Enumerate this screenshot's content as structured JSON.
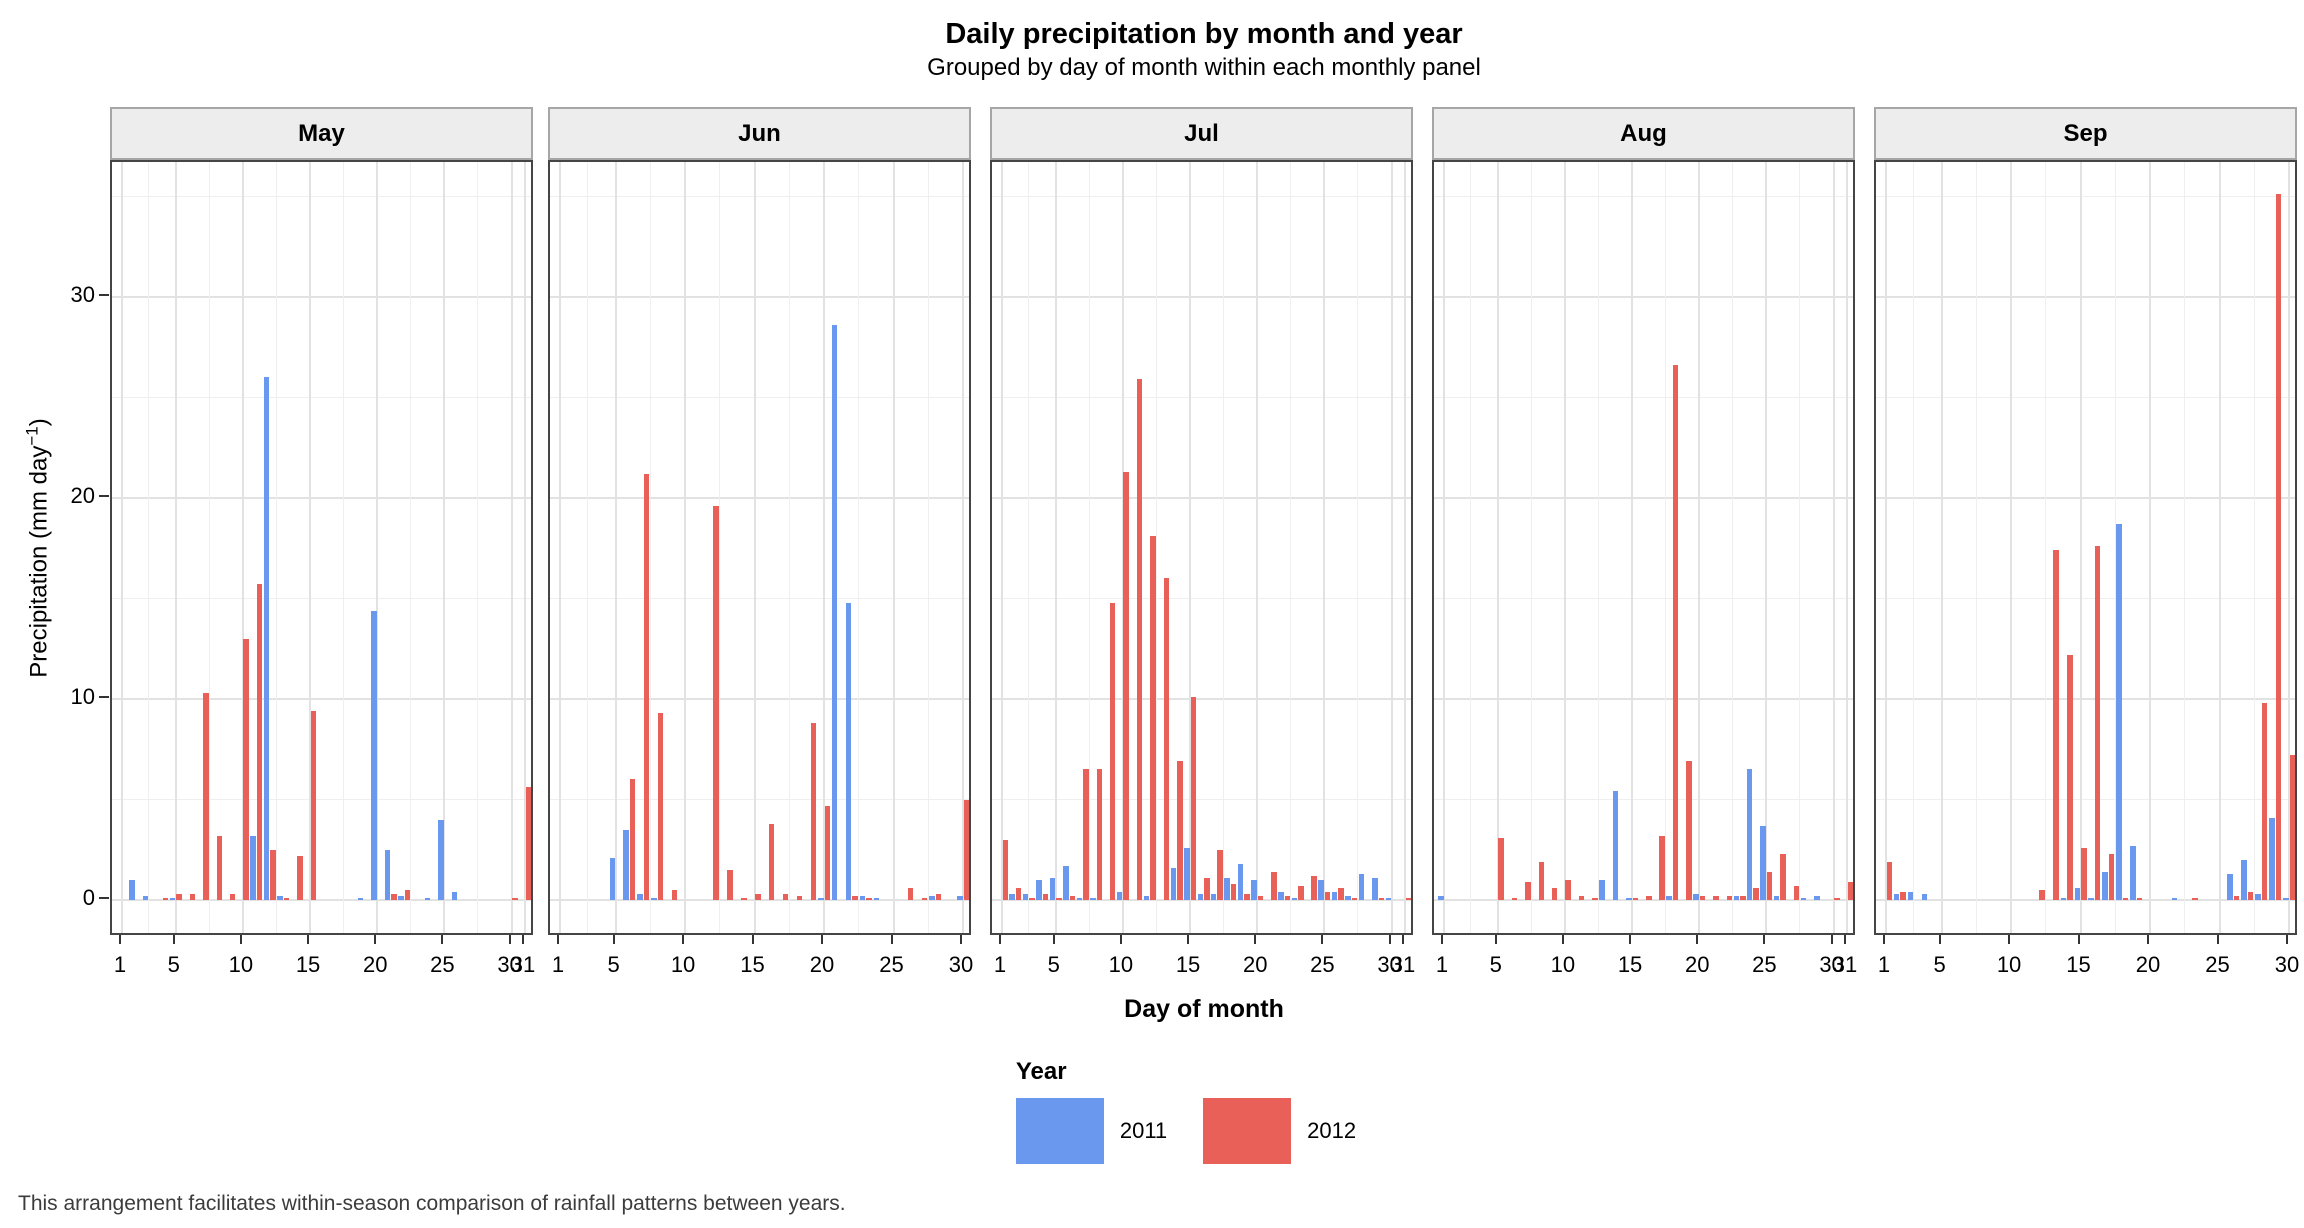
{
  "chart_data": {
    "type": "bar",
    "title": "Daily precipitation by month and year",
    "subtitle": "Grouped by day of month within each monthly panel",
    "xlabel": "Day of month",
    "ylabel_main": "Precipitation (mm day",
    "ylabel_sup": "−1",
    "ylabel_close": ")",
    "footer": "This arrangement facilitates within-season comparison of rainfall patterns between years.",
    "grid": "major and minor, light gray on white",
    "legend_position": "bottom center",
    "yticks": [
      0,
      10,
      20,
      30
    ],
    "ylim": [
      0,
      37
    ],
    "x_tick_days": [
      1,
      5,
      10,
      15,
      20,
      25,
      30
    ],
    "legend": {
      "title": "Year",
      "series": [
        {
          "name": "2011",
          "color": "#6998ee"
        },
        {
          "name": "2012",
          "color": "#e86057"
        }
      ]
    },
    "panels": [
      {
        "month": "May",
        "days": 31,
        "values": {
          "2011": {
            "2": 1.0,
            "3": 0.2,
            "5": 0.1,
            "11": 3.2,
            "12": 26.0,
            "13": 0.2,
            "19": 0.1,
            "20": 14.4,
            "21": 2.5,
            "22": 0.2,
            "24": 0.1,
            "25": 4.0,
            "26": 0.4
          },
          "2012": {
            "4": 0.1,
            "5": 0.3,
            "6": 0.3,
            "7": 10.3,
            "8": 3.2,
            "9": 0.3,
            "10": 13.0,
            "11": 15.7,
            "12": 2.5,
            "13": 0.1,
            "14": 2.2,
            "15": 9.4,
            "21": 0.3,
            "22": 0.5,
            "30": 0.1,
            "31": 5.6
          }
        }
      },
      {
        "month": "Jun",
        "days": 30,
        "values": {
          "2011": {
            "5": 2.1,
            "6": 3.5,
            "7": 0.3,
            "8": 0.1,
            "20": 0.1,
            "21": 28.6,
            "22": 14.8,
            "23": 0.2,
            "24": 0.1,
            "28": 0.2,
            "30": 0.2
          },
          "2012": {
            "6": 6.0,
            "7": 21.2,
            "8": 9.3,
            "9": 0.5,
            "12": 19.6,
            "13": 1.5,
            "14": 0.1,
            "15": 0.3,
            "16": 3.8,
            "17": 0.3,
            "18": 0.2,
            "19": 8.8,
            "20": 4.7,
            "22": 0.2,
            "23": 0.1,
            "26": 0.6,
            "27": 0.1,
            "28": 0.3,
            "30": 5.0
          }
        }
      },
      {
        "month": "Jul",
        "days": 31,
        "values": {
          "2011": {
            "2": 0.3,
            "3": 0.3,
            "4": 1.0,
            "5": 1.1,
            "6": 1.7,
            "7": 0.1,
            "8": 0.1,
            "10": 0.4,
            "12": 0.2,
            "14": 1.6,
            "15": 2.6,
            "16": 0.3,
            "17": 0.3,
            "18": 1.1,
            "19": 1.8,
            "20": 1.0,
            "22": 0.4,
            "23": 0.1,
            "25": 1.0,
            "26": 0.4,
            "27": 0.2,
            "28": 1.3,
            "29": 1.1,
            "30": 0.1
          },
          "2012": {
            "1": 3.0,
            "2": 0.6,
            "3": 0.1,
            "4": 0.3,
            "5": 0.1,
            "6": 0.2,
            "7": 6.5,
            "8": 6.5,
            "9": 14.8,
            "10": 21.3,
            "11": 25.9,
            "12": 18.1,
            "13": 16.0,
            "14": 6.9,
            "15": 10.1,
            "16": 1.1,
            "17": 2.5,
            "18": 0.8,
            "19": 0.3,
            "20": 0.2,
            "21": 1.4,
            "22": 0.2,
            "23": 0.7,
            "24": 1.2,
            "25": 0.4,
            "26": 0.6,
            "27": 0.1,
            "29": 0.1,
            "31": 0.1
          }
        }
      },
      {
        "month": "Aug",
        "days": 31,
        "values": {
          "2011": {
            "1": 0.2,
            "13": 1.0,
            "14": 5.4,
            "15": 0.1,
            "18": 0.2,
            "20": 0.3,
            "23": 0.2,
            "24": 6.5,
            "25": 3.7,
            "26": 0.2,
            "28": 0.1,
            "29": 0.2
          },
          "2012": {
            "5": 3.1,
            "6": 0.1,
            "7": 0.9,
            "8": 1.9,
            "9": 0.6,
            "10": 1.0,
            "11": 0.2,
            "12": 0.1,
            "15": 0.1,
            "16": 0.2,
            "17": 3.2,
            "18": 26.6,
            "19": 6.9,
            "20": 0.2,
            "21": 0.2,
            "22": 0.2,
            "23": 0.2,
            "24": 0.6,
            "25": 1.4,
            "26": 2.3,
            "27": 0.7,
            "30": 0.1,
            "31": 0.9
          }
        }
      },
      {
        "month": "Sep",
        "days": 30,
        "values": {
          "2011": {
            "2": 0.3,
            "3": 0.4,
            "4": 0.3,
            "14": 0.1,
            "15": 0.6,
            "16": 0.1,
            "17": 1.4,
            "18": 18.7,
            "19": 2.7,
            "22": 0.1,
            "26": 1.3,
            "27": 2.0,
            "28": 0.3,
            "29": 4.1,
            "30": 0.1
          },
          "2012": {
            "1": 1.9,
            "2": 0.4,
            "12": 0.5,
            "13": 17.4,
            "14": 12.2,
            "15": 2.6,
            "16": 17.6,
            "17": 2.3,
            "18": 0.1,
            "19": 0.1,
            "23": 0.1,
            "26": 0.2,
            "27": 0.4,
            "28": 9.8,
            "29": 35.1,
            "30": 7.2
          }
        }
      }
    ]
  }
}
